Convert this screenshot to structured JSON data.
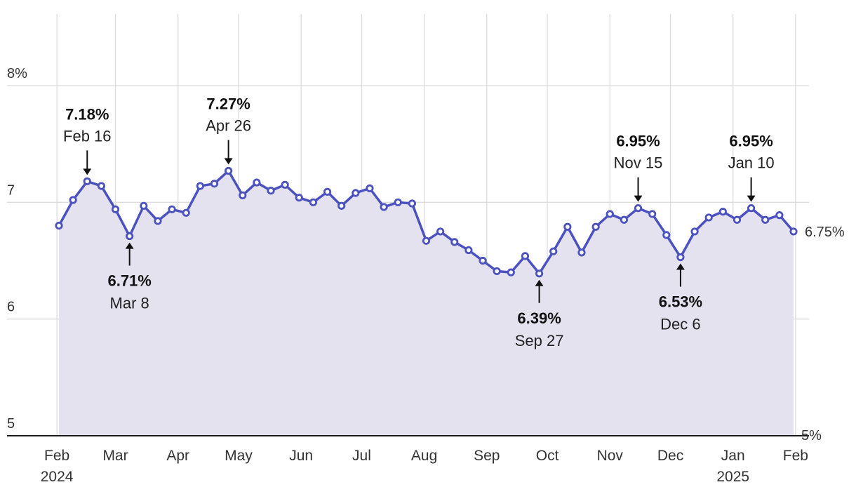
{
  "chart_data": {
    "type": "line",
    "title": "",
    "xlabel": "",
    "ylabel": "",
    "x_start": "2024-02-02",
    "x_end": "2025-01-31",
    "x_ticks": [
      {
        "date": "2024-02-01",
        "label": "Feb",
        "sublabel": "2024"
      },
      {
        "date": "2024-03-01",
        "label": "Mar"
      },
      {
        "date": "2024-04-01",
        "label": "Apr"
      },
      {
        "date": "2024-05-01",
        "label": "May"
      },
      {
        "date": "2024-06-01",
        "label": "Jun"
      },
      {
        "date": "2024-07-01",
        "label": "Jul"
      },
      {
        "date": "2024-08-01",
        "label": "Aug"
      },
      {
        "date": "2024-09-01",
        "label": "Sep"
      },
      {
        "date": "2024-10-01",
        "label": "Oct"
      },
      {
        "date": "2024-11-01",
        "label": "Nov"
      },
      {
        "date": "2024-12-01",
        "label": "Dec"
      },
      {
        "date": "2025-01-01",
        "label": "Jan",
        "sublabel": "2025"
      },
      {
        "date": "2025-02-01",
        "label": "Feb"
      }
    ],
    "y_ticks": [
      {
        "value": 5,
        "label": "5"
      },
      {
        "value": 6,
        "label": "6"
      },
      {
        "value": 7,
        "label": "7"
      },
      {
        "value": 8,
        "label": "8%"
      }
    ],
    "ylim": [
      5,
      8
    ],
    "grid": true,
    "legend": "none",
    "series": [
      {
        "color": "#4b52c0",
        "fill": "#e4e2ef",
        "values": [
          6.8,
          7.02,
          7.18,
          7.14,
          6.94,
          6.71,
          6.97,
          6.84,
          6.94,
          6.91,
          7.14,
          7.16,
          7.27,
          7.06,
          7.17,
          7.1,
          7.15,
          7.04,
          7.0,
          7.09,
          6.97,
          7.08,
          7.12,
          6.96,
          7.0,
          6.99,
          6.67,
          6.75,
          6.66,
          6.59,
          6.5,
          6.41,
          6.4,
          6.54,
          6.39,
          6.58,
          6.79,
          6.57,
          6.79,
          6.9,
          6.85,
          6.95,
          6.9,
          6.72,
          6.53,
          6.75,
          6.87,
          6.92,
          6.85,
          6.95,
          6.85,
          6.89,
          6.75
        ]
      }
    ],
    "annotations": [
      {
        "index": 2,
        "value": "7.18%",
        "date": "Feb 16",
        "position": "above"
      },
      {
        "index": 5,
        "value": "6.71%",
        "date": "Mar 8",
        "position": "below"
      },
      {
        "index": 12,
        "value": "7.27%",
        "date": "Apr 26",
        "position": "above"
      },
      {
        "index": 34,
        "value": "6.39%",
        "date": "Sep 27",
        "position": "below"
      },
      {
        "index": 41,
        "value": "6.95%",
        "date": "Nov 15",
        "position": "above"
      },
      {
        "index": 44,
        "value": "6.53%",
        "date": "Dec 6",
        "position": "below"
      },
      {
        "index": 49,
        "value": "6.95%",
        "date": "Jan 10",
        "position": "above"
      }
    ],
    "end_label": "6.75%",
    "right_axis_label": "5%"
  }
}
